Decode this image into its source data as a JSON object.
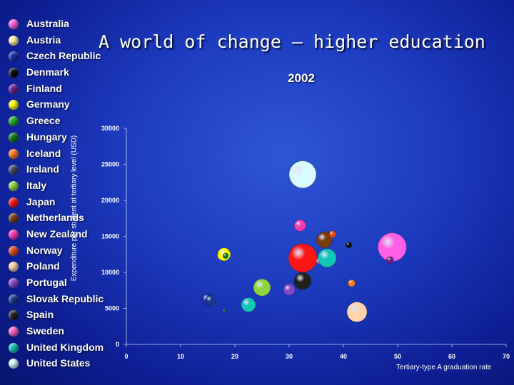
{
  "slide_title": "A world of change – higher education",
  "chart_data": {
    "type": "scatter",
    "title": "2002",
    "xlabel": "Tertiary-type A graduation rate",
    "ylabel": "Expenditure per student at tertiary level (USD)",
    "xlim": [
      0,
      70
    ],
    "ylim": [
      0,
      30000
    ],
    "x_ticks": [
      "0",
      "10",
      "20",
      "30",
      "40",
      "50",
      "60",
      "70"
    ],
    "y_ticks": [
      "0",
      "5000",
      "10000",
      "15000",
      "20000",
      "25000",
      "30000"
    ],
    "grid": false,
    "legend_placement": "left",
    "series": [
      {
        "name": "Australia",
        "color": "#ff5ee6",
        "x": 49.0,
        "y": 13500,
        "size": 20
      },
      {
        "name": "Austria",
        "color": "#fff4a8",
        "x": 17.6,
        "y": 12300,
        "size": 6
      },
      {
        "name": "Czech Republic",
        "color": "#1c2fa8",
        "x": 15.0,
        "y": 6200,
        "size": 9
      },
      {
        "name": "Denmark",
        "color": "#0a0a0a",
        "x": 41.0,
        "y": 13800,
        "size": 4
      },
      {
        "name": "Finland",
        "color": "#6a1f8c",
        "x": 48.6,
        "y": 11700,
        "size": 5
      },
      {
        "name": "Germany",
        "color": "#ffff00",
        "x": 18.0,
        "y": 12500,
        "size": 9
      },
      {
        "name": "Greece",
        "color": "#22aa22",
        "x": 18.0,
        "y": 4700,
        "size": 1.5
      },
      {
        "name": "Hungary",
        "color": "#117711",
        "x": 18.3,
        "y": 12300,
        "size": 4
      },
      {
        "name": "Iceland",
        "color": "#ff7d1a",
        "x": 41.5,
        "y": 8500,
        "size": 5
      },
      {
        "name": "Ireland",
        "color": "#40485e",
        "x": 37.0,
        "y": 15300,
        "size": 4
      },
      {
        "name": "Italy",
        "color": "#8ed63e",
        "x": 25.0,
        "y": 7900,
        "size": 12
      },
      {
        "name": "Japan",
        "color": "#ff1414",
        "x": 32.5,
        "y": 12000,
        "size": 20
      },
      {
        "name": "Netherlands",
        "color": "#7a3c0a",
        "x": 36.5,
        "y": 14500,
        "size": 11
      },
      {
        "name": "New Zealand",
        "color": "#ff3ab0",
        "x": 32.0,
        "y": 16500,
        "size": 8
      },
      {
        "name": "Norway",
        "color": "#e14a18",
        "x": 38.0,
        "y": 15300,
        "size": 5
      },
      {
        "name": "Poland",
        "color": "#ffd4aa",
        "x": 42.5,
        "y": 4500,
        "size": 14
      },
      {
        "name": "Portugal",
        "color": "#8a46c8",
        "x": 30.0,
        "y": 7600,
        "size": 8
      },
      {
        "name": "Slovak Republic",
        "color": "#1a3a8c",
        "x": 15.5,
        "y": 6100,
        "size": 7
      },
      {
        "name": "Spain",
        "color": "#202020",
        "x": 32.5,
        "y": 8800,
        "size": 12
      },
      {
        "name": "Sweden",
        "color": "#ff64c0",
        "x": 35.5,
        "y": 11600,
        "size": 4
      },
      {
        "name": "United Kingdom",
        "color": "#11c7b5",
        "x": 37.0,
        "y": 12000,
        "size": 13
      },
      {
        "name": "United States",
        "color": "#d8fbff",
        "x": 32.5,
        "y": 23600,
        "size": 19
      },
      {
        "name": "",
        "color": "#11c7b5",
        "x": 22.5,
        "y": 5500,
        "size": 10
      }
    ]
  },
  "legend": [
    {
      "label": "Australia",
      "color": "#ff5ee6"
    },
    {
      "label": "Austria",
      "color": "#fff4a8"
    },
    {
      "label": "Czech Republic",
      "color": "#1c2fa8"
    },
    {
      "label": "Denmark",
      "color": "#0a0a0a"
    },
    {
      "label": "Finland",
      "color": "#6a1f8c"
    },
    {
      "label": "Germany",
      "color": "#ffff00"
    },
    {
      "label": "Greece",
      "color": "#22aa22"
    },
    {
      "label": "Hungary",
      "color": "#117711"
    },
    {
      "label": "Iceland",
      "color": "#ff7d1a"
    },
    {
      "label": "Ireland",
      "color": "#40485e"
    },
    {
      "label": "Italy",
      "color": "#8ed63e"
    },
    {
      "label": "Japan",
      "color": "#ff1414"
    },
    {
      "label": "Netherlands",
      "color": "#7a3c0a"
    },
    {
      "label": "New Zealand",
      "color": "#ff3ab0"
    },
    {
      "label": "Norway",
      "color": "#e14a18"
    },
    {
      "label": "Poland",
      "color": "#ffd4aa"
    },
    {
      "label": "Portugal",
      "color": "#8a46c8"
    },
    {
      "label": "Slovak Republic",
      "color": "#1a3a8c"
    },
    {
      "label": "Spain",
      "color": "#202020"
    },
    {
      "label": "Sweden",
      "color": "#ff64c0"
    },
    {
      "label": "United Kingdom",
      "color": "#11c7b5"
    },
    {
      "label": "United States",
      "color": "#d8fbff"
    }
  ]
}
